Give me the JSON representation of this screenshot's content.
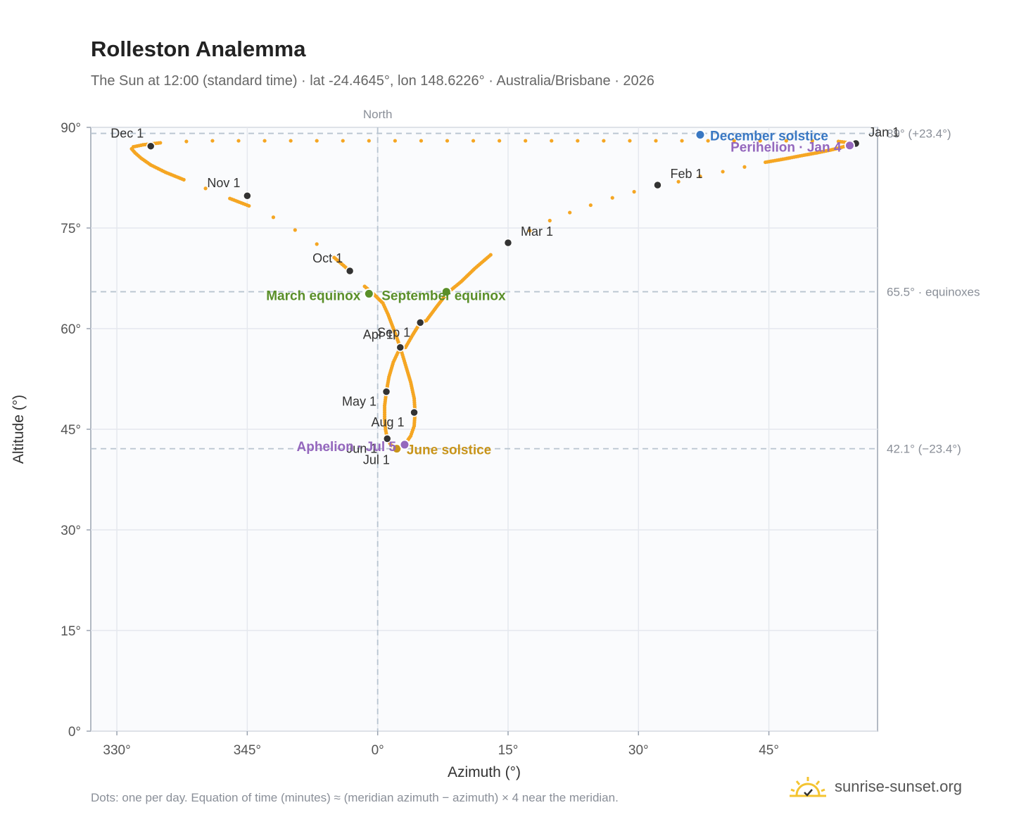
{
  "title": "Rolleston Analemma",
  "subtitle": "The Sun at 12:00 (standard time) · lat -24.4645°, lon 148.6226° · Australia/Brisbane · 2026",
  "footnote": "Dots: one per day. Equation of time (minutes) ≈ (meridian azimuth − azimuth) × 4 near the meridian.",
  "brand": {
    "text": "sunrise-sunset.org",
    "icon": "sun-logo-icon",
    "color": "#f4c430"
  },
  "colors": {
    "curve": "#f5a623",
    "month_dot": "#333333",
    "equinox": "#5a8f29",
    "solstice_dec": "#3a78c3",
    "solstice_jun": "#c8941a",
    "apsis": "#9467bd",
    "grid": "#e5e8ee",
    "ref_line": "#b8c4d0"
  },
  "chart_data": {
    "type": "scatter",
    "xlabel": "Azimuth (°)",
    "ylabel": "Altitude (°)",
    "xlim": [
      327,
      57.5
    ],
    "ylim": [
      0,
      90
    ],
    "x_axis_note": "azimuth wraps through north (0°)",
    "x_ticks": [
      {
        "value": 330,
        "label": "330°"
      },
      {
        "value": 345,
        "label": "345°"
      },
      {
        "value": 0,
        "label": "0°"
      },
      {
        "value": 15,
        "label": "15°"
      },
      {
        "value": 30,
        "label": "30°"
      },
      {
        "value": 45,
        "label": "45°"
      }
    ],
    "y_ticks": [
      {
        "value": 0,
        "label": "0°"
      },
      {
        "value": 15,
        "label": "15°"
      },
      {
        "value": 30,
        "label": "30°"
      },
      {
        "value": 45,
        "label": "45°"
      },
      {
        "value": 60,
        "label": "60°"
      },
      {
        "value": 75,
        "label": "75°"
      },
      {
        "value": 90,
        "label": "90°"
      }
    ],
    "grid": true,
    "north_marker": {
      "azimuth": 0,
      "label": "North"
    },
    "reference_lines": [
      {
        "altitude": 89.1,
        "label": "89° (+23.4°)"
      },
      {
        "altitude": 65.5,
        "label": "65.5° · equinoxes"
      },
      {
        "altitude": 42.1,
        "label": "42.1° (−23.4°)"
      }
    ],
    "series": [
      {
        "points": [
          [
            55.0,
            87.6
          ],
          [
            54.7,
            87.5
          ],
          [
            54.4,
            87.4
          ],
          [
            53.8,
            87.2
          ],
          [
            53.0,
            86.9
          ],
          [
            52.0,
            86.6
          ],
          [
            50.5,
            86.2
          ],
          [
            48.8,
            85.8
          ],
          [
            46.8,
            85.3
          ],
          [
            44.6,
            84.8
          ],
          [
            42.2,
            84.1
          ],
          [
            39.7,
            83.4
          ],
          [
            37.1,
            82.7
          ],
          [
            34.6,
            81.9
          ],
          [
            32.2,
            81.4
          ],
          [
            29.5,
            80.4
          ],
          [
            27.0,
            79.5
          ],
          [
            24.5,
            78.4
          ],
          [
            22.1,
            77.3
          ],
          [
            19.8,
            76.1
          ],
          [
            17.5,
            74.6
          ],
          [
            15.0,
            72.8
          ],
          [
            13.0,
            71.0
          ],
          [
            11.2,
            69.0
          ],
          [
            9.6,
            67.0
          ],
          [
            8.0,
            65.3
          ],
          [
            6.8,
            63.3
          ],
          [
            5.6,
            61.2
          ],
          [
            4.9,
            60.9
          ],
          [
            4.0,
            59.0
          ],
          [
            3.2,
            57.2
          ],
          [
            2.6,
            57.2
          ],
          [
            1.8,
            55.0
          ],
          [
            1.3,
            52.8
          ],
          [
            1.0,
            50.6
          ],
          [
            0.8,
            48.5
          ],
          [
            0.8,
            46.6
          ],
          [
            0.9,
            45.0
          ],
          [
            1.1,
            43.6
          ],
          [
            1.5,
            42.7
          ],
          [
            1.9,
            42.3
          ],
          [
            2.2,
            42.1
          ],
          [
            2.6,
            42.2
          ],
          [
            3.2,
            42.9
          ],
          [
            3.8,
            44.0
          ],
          [
            4.2,
            45.5
          ],
          [
            4.3,
            47.5
          ],
          [
            4.2,
            49.6
          ],
          [
            3.8,
            52.0
          ],
          [
            3.2,
            54.6
          ],
          [
            2.6,
            57.2
          ],
          [
            1.9,
            59.7
          ],
          [
            1.2,
            62.1
          ],
          [
            0.6,
            63.8
          ],
          [
            -0.5,
            65.2
          ],
          [
            -1.5,
            66.3
          ],
          [
            -3.2,
            68.6
          ],
          [
            -5.0,
            70.6
          ],
          [
            -7.0,
            72.6
          ],
          [
            -9.5,
            74.7
          ],
          [
            -12.0,
            76.6
          ],
          [
            -14.8,
            78.3
          ],
          [
            -17.0,
            79.4
          ],
          [
            -19.8,
            80.9
          ],
          [
            -22.3,
            82.2
          ],
          [
            -24.4,
            83.3
          ],
          [
            -26.1,
            84.4
          ],
          [
            -27.2,
            85.4
          ],
          [
            -27.9,
            86.2
          ],
          [
            -28.3,
            86.8
          ],
          [
            -28.1,
            87.1
          ],
          [
            -27.0,
            87.4
          ],
          [
            -25.0,
            87.7
          ],
          [
            -22.0,
            87.9
          ],
          [
            -19.0,
            88.0
          ],
          [
            -16.0,
            88.0
          ],
          [
            -13.0,
            88.0
          ],
          [
            -10.0,
            88.0
          ],
          [
            -7.0,
            88.0
          ],
          [
            -4.0,
            88.0
          ],
          [
            -1.0,
            88.0
          ],
          [
            2.0,
            88.0
          ],
          [
            5.0,
            88.0
          ],
          [
            8.0,
            88.0
          ],
          [
            11.0,
            88.0
          ],
          [
            14.0,
            88.0
          ],
          [
            17.0,
            88.0
          ],
          [
            20.0,
            88.0
          ],
          [
            23.0,
            88.0
          ],
          [
            26.0,
            88.0
          ],
          [
            29.0,
            88.0
          ],
          [
            32.0,
            88.0
          ],
          [
            35.0,
            88.0
          ],
          [
            38.0,
            88.0
          ],
          [
            41.0,
            88.0
          ],
          [
            44.0,
            88.0
          ],
          [
            47.0,
            88.0
          ],
          [
            50.0,
            88.0
          ],
          [
            53.0,
            87.9
          ],
          [
            55.0,
            87.6
          ]
        ]
      }
    ],
    "month_markers": [
      {
        "label": "Jan 1",
        "azimuth": 55.0,
        "altitude": 87.6,
        "anchor": "right-up"
      },
      {
        "label": "Feb 1",
        "azimuth": 32.2,
        "altitude": 81.4,
        "anchor": "right-up"
      },
      {
        "label": "Mar 1",
        "azimuth": 15.0,
        "altitude": 72.8,
        "anchor": "right-up"
      },
      {
        "label": "Apr 1",
        "azimuth": 2.6,
        "altitude": 57.2,
        "anchor": "left-up"
      },
      {
        "label": "May 1",
        "azimuth": 1.0,
        "altitude": 50.6,
        "anchor": "left-down"
      },
      {
        "label": "Jun 1",
        "azimuth": 1.1,
        "altitude": 43.6,
        "anchor": "left-down"
      },
      {
        "label": "Jul 1",
        "azimuth": 2.2,
        "altitude": 42.1,
        "anchor": "left-down2"
      },
      {
        "label": "Aug 1",
        "azimuth": 4.2,
        "altitude": 47.5,
        "anchor": "left-down"
      },
      {
        "label": "Sep 1",
        "azimuth": 4.9,
        "altitude": 60.9,
        "anchor": "left-down"
      },
      {
        "label": "Oct 1",
        "azimuth": -3.2,
        "altitude": 68.6,
        "anchor": "left-up"
      },
      {
        "label": "Nov 1",
        "azimuth": -15.0,
        "altitude": 79.8,
        "anchor": "left-up"
      },
      {
        "label": "Dec 1",
        "azimuth": -26.1,
        "altitude": 87.2,
        "anchor": "left-up"
      }
    ],
    "events": [
      {
        "label": "March equinox",
        "azimuth": -1.0,
        "altitude": 65.2,
        "color": "equinox",
        "side": "left"
      },
      {
        "label": "September equinox",
        "azimuth": 7.9,
        "altitude": 65.5,
        "color": "equinox",
        "side": "right-below"
      },
      {
        "label": "December solstice",
        "azimuth": 37.1,
        "altitude": 88.9,
        "color": "solstice_dec",
        "side": "right"
      },
      {
        "label": "June solstice",
        "azimuth": 2.2,
        "altitude": 42.1,
        "color": "solstice_jun",
        "side": "right"
      },
      {
        "label": "Perihelion · Jan 4",
        "azimuth": 54.3,
        "altitude": 87.3,
        "color": "apsis",
        "side": "left"
      },
      {
        "label": "Aphelion · Jul 5",
        "azimuth": 3.1,
        "altitude": 42.7,
        "color": "apsis",
        "side": "left"
      }
    ]
  }
}
